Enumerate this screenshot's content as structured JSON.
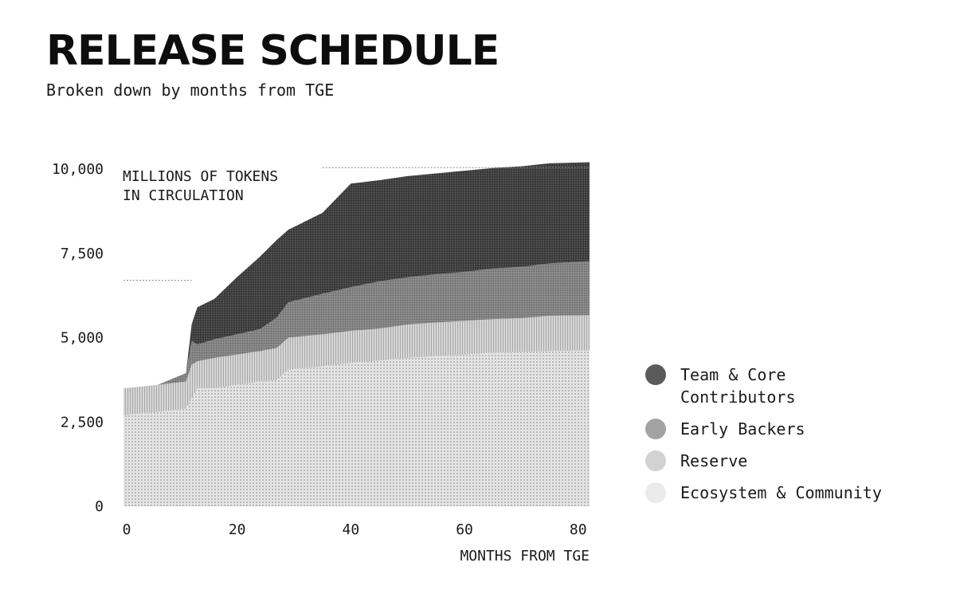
{
  "header": {
    "title": "RELEASE SCHEDULE",
    "subtitle": "Broken down by months from TGE"
  },
  "colors": {
    "team": "#444444",
    "early_backers": "#8a8a8a",
    "reserve": "#c4c4c4",
    "ecosystem": "#dedede",
    "legend_team": "#5b5b5b",
    "legend_early": "#a3a3a3",
    "legend_reserve": "#d2d2d2",
    "legend_ecosystem": "#ebebeb"
  },
  "chart_data": {
    "type": "area",
    "stacked": true,
    "title": "RELEASE SCHEDULE",
    "subtitle": "Broken down by months from TGE",
    "ylabel": "MILLIONS OF TOKENS\nIN CIRCULATION",
    "xlabel": "MONTHS FROM TGE",
    "xlim": [
      0,
      82
    ],
    "ylim": [
      0,
      10000
    ],
    "xticks": [
      "0",
      "20",
      "40",
      "60",
      "80"
    ],
    "yticks": [
      "10,000",
      "7,500",
      "5,000",
      "2,500",
      "0"
    ],
    "legend_position": "right",
    "grid": false,
    "x": [
      0,
      6,
      11,
      12,
      13,
      16,
      20,
      24,
      27,
      29,
      35,
      40,
      45,
      50,
      55,
      60,
      65,
      70,
      75,
      82
    ],
    "series": [
      {
        "name": "Ecosystem & Community",
        "values": [
          2700,
          2800,
          2900,
          3200,
          3500,
          3500,
          3600,
          3700,
          3750,
          4050,
          4150,
          4250,
          4320,
          4400,
          4450,
          4500,
          4550,
          4580,
          4600,
          4620
        ]
      },
      {
        "name": "Reserve",
        "values": [
          800,
          800,
          800,
          1000,
          800,
          900,
          900,
          900,
          950,
          950,
          950,
          950,
          950,
          990,
          1000,
          1000,
          1000,
          1000,
          1050,
          1050
        ]
      },
      {
        "name": "Early Backers",
        "values": [
          0,
          0,
          250,
          700,
          500,
          550,
          600,
          650,
          900,
          1050,
          1200,
          1300,
          1400,
          1400,
          1430,
          1450,
          1500,
          1520,
          1550,
          1600
        ]
      },
      {
        "name": "Team & Core Contributors",
        "values": [
          0,
          0,
          0,
          500,
          1100,
          1200,
          1700,
          2150,
          2300,
          2150,
          2400,
          3070,
          3000,
          3000,
          2990,
          3000,
          2980,
          2980,
          2970,
          2930
        ]
      }
    ],
    "reference_lines": [
      6700,
      10040
    ]
  },
  "legend": {
    "items": [
      {
        "label": "Team & Core\nContributors"
      },
      {
        "label": "Early Backers"
      },
      {
        "label": "Reserve"
      },
      {
        "label": "Ecosystem & Community"
      }
    ]
  }
}
